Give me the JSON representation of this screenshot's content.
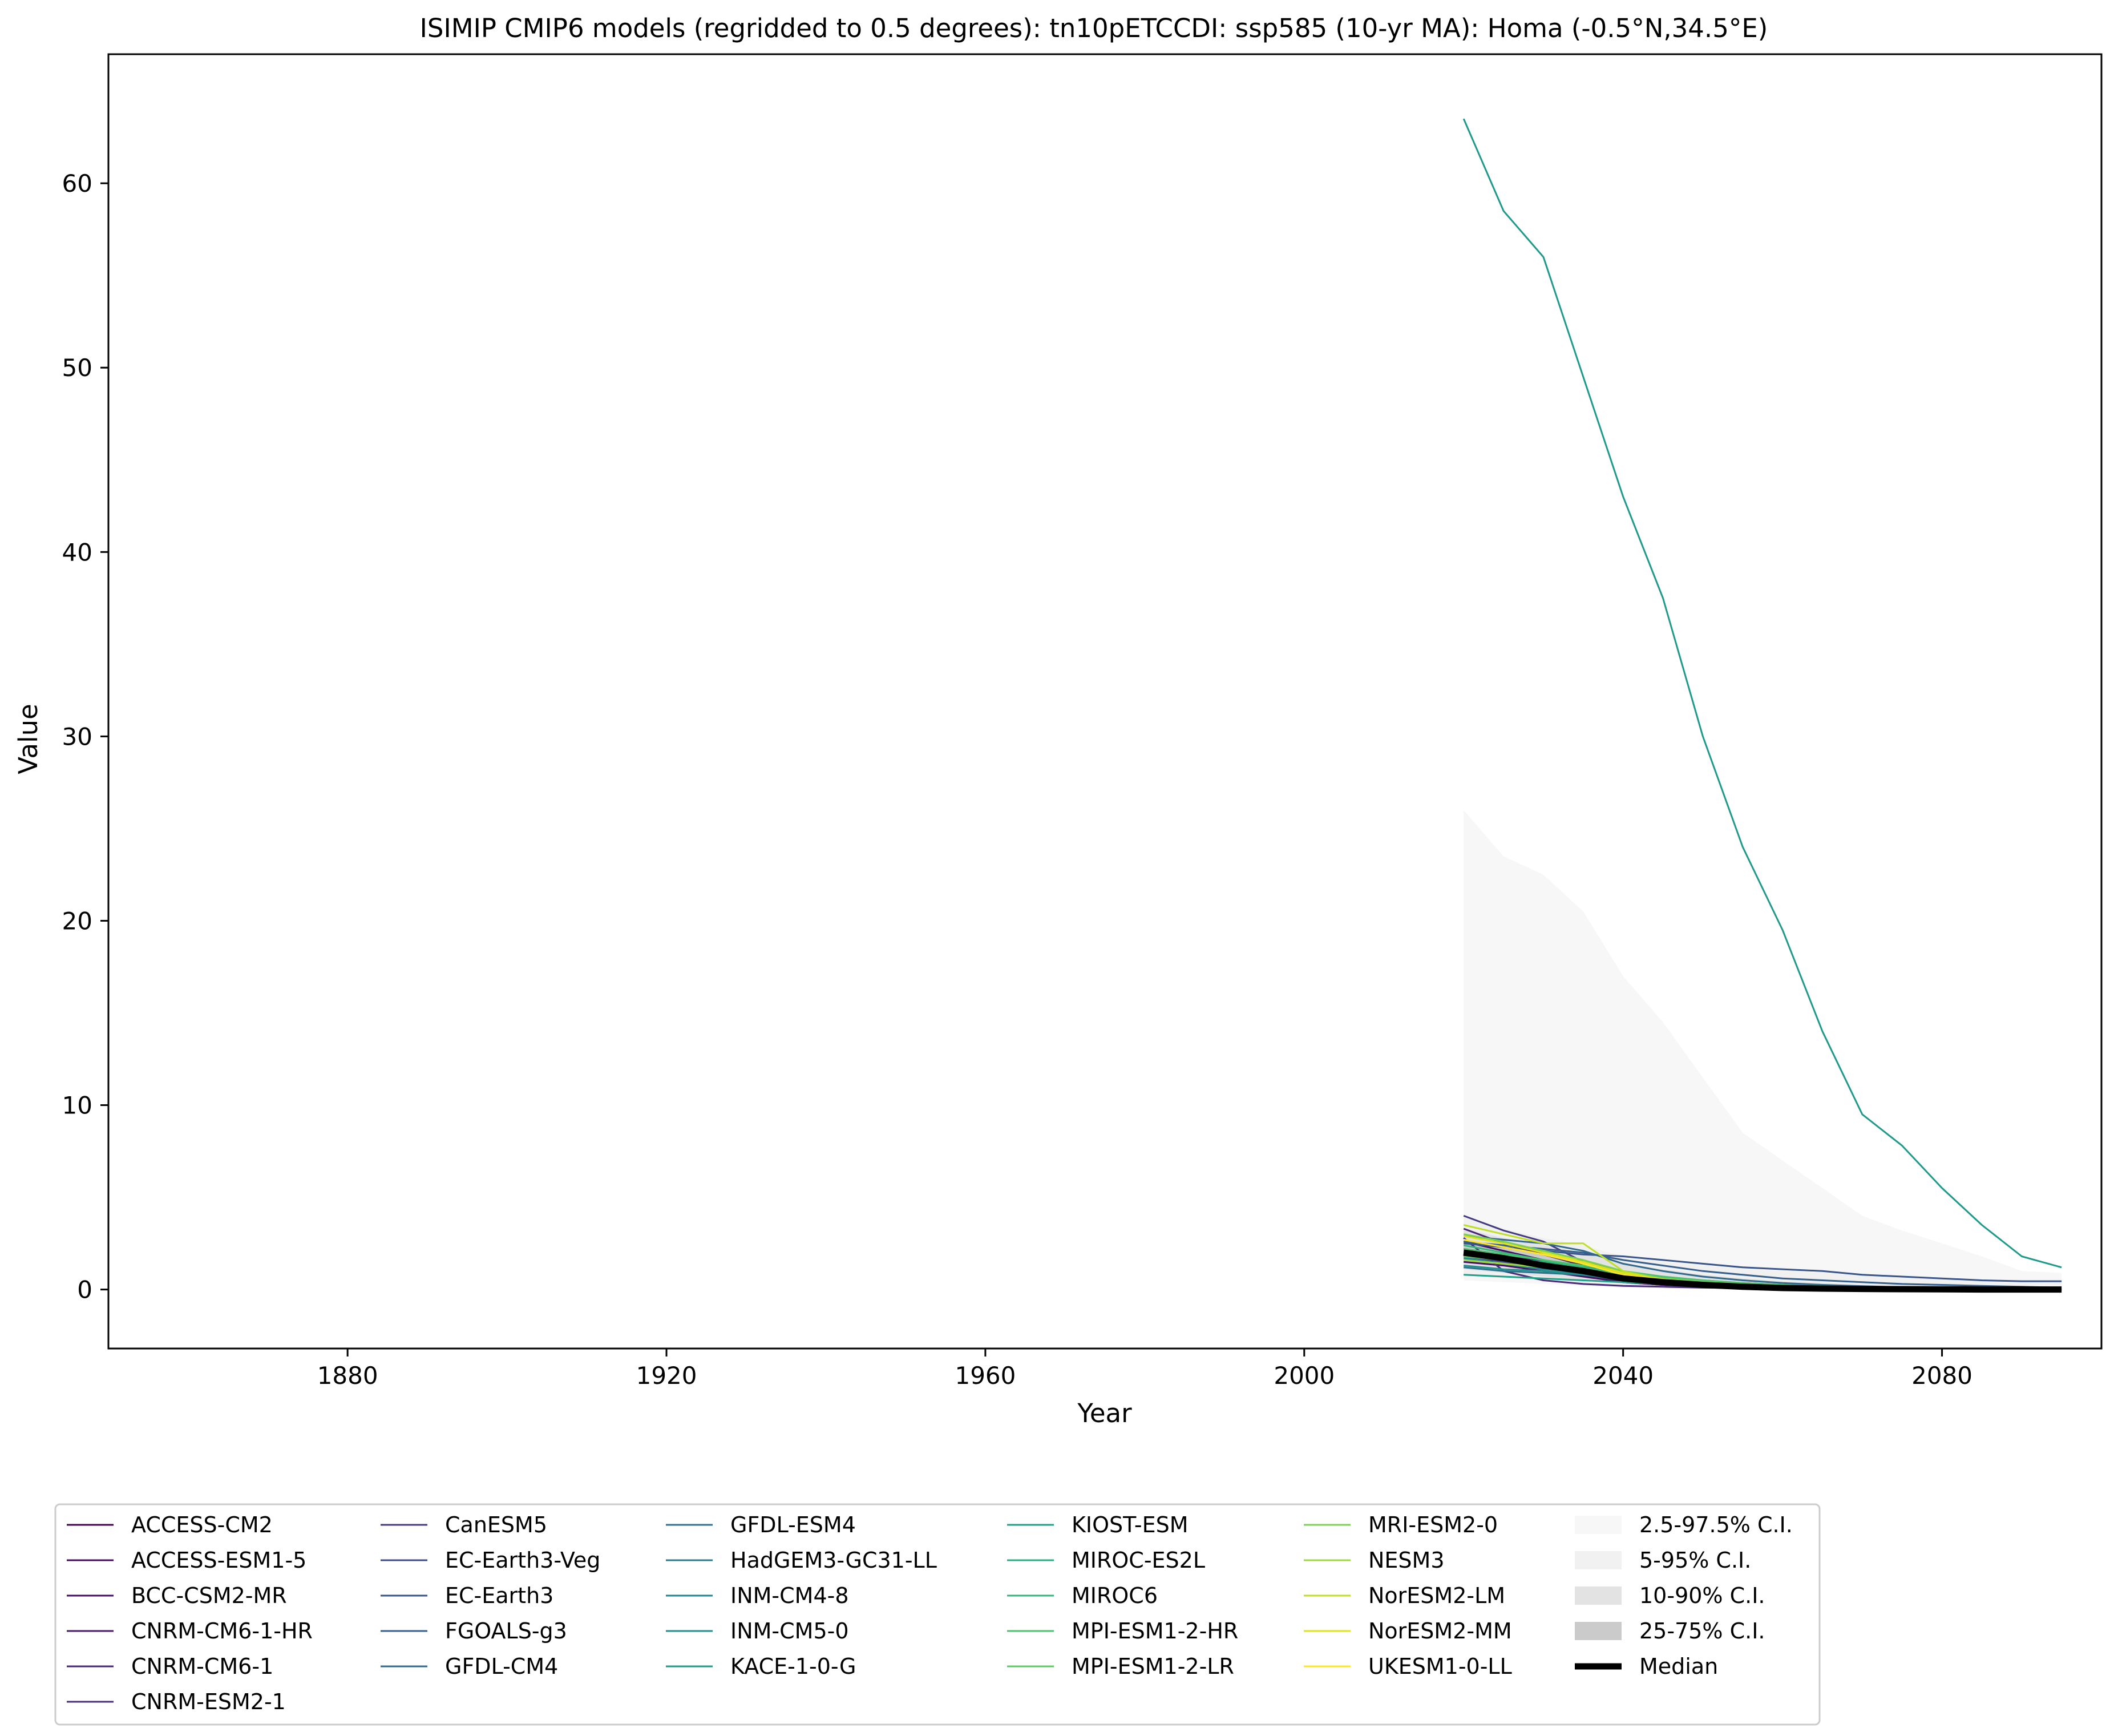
{
  "chart_data": {
    "type": "line",
    "title": "ISIMIP CMIP6 models (regridded to 0.5 degrees): tn10pETCCDI: ssp585 (10-yr MA): Homa (-0.5°N,34.5°E)",
    "xlabel": "Year",
    "ylabel": "Value",
    "xlim": [
      1850,
      2100
    ],
    "ylim": [
      -3.2,
      67
    ],
    "xticks": [
      1880,
      1920,
      1960,
      2000,
      2040,
      2080
    ],
    "yticks": [
      0,
      10,
      20,
      30,
      40,
      50,
      60
    ],
    "grid": false,
    "legend_position": "bottom",
    "x": [
      2020,
      2025,
      2030,
      2035,
      2040,
      2045,
      2050,
      2055,
      2060,
      2065,
      2070,
      2075,
      2080,
      2085,
      2090,
      2095
    ],
    "series": [
      {
        "name": "ACCESS-CM2",
        "color": "#440154",
        "values": [
          2.0,
          1.7,
          1.3,
          0.8,
          0.4,
          0.25,
          0.15,
          0.1,
          0.05,
          0.03,
          0.02,
          0.01,
          0.01,
          0.0,
          0.0,
          0.0
        ]
      },
      {
        "name": "ACCESS-ESM1-5",
        "color": "#46085c",
        "values": [
          2.6,
          2.1,
          1.6,
          1.1,
          0.6,
          0.35,
          0.2,
          0.12,
          0.07,
          0.04,
          0.02,
          0.01,
          0.01,
          0.0,
          0.0,
          0.0
        ]
      },
      {
        "name": "BCC-CSM2-MR",
        "color": "#471063",
        "values": [
          1.5,
          1.3,
          1.0,
          0.7,
          0.4,
          0.25,
          0.15,
          0.1,
          0.06,
          0.04,
          0.02,
          0.01,
          0.0,
          0.0,
          0.0,
          0.0
        ]
      },
      {
        "name": "CNRM-CM6-1-HR",
        "color": "#48186a",
        "values": [
          2.2,
          1.9,
          1.5,
          1.1,
          0.6,
          0.4,
          0.25,
          0.15,
          0.1,
          0.06,
          0.04,
          0.02,
          0.01,
          0.0,
          0.0,
          0.0
        ]
      },
      {
        "name": "CNRM-CM6-1",
        "color": "#482475",
        "values": [
          3.3,
          2.5,
          1.9,
          1.3,
          0.7,
          0.4,
          0.25,
          0.15,
          0.1,
          0.06,
          0.03,
          0.02,
          0.01,
          0.0,
          0.0,
          0.0
        ]
      },
      {
        "name": "CNRM-ESM2-1",
        "color": "#472d7b",
        "values": [
          2.8,
          1.0,
          0.5,
          0.3,
          0.2,
          0.15,
          0.1,
          0.08,
          0.05,
          0.03,
          0.02,
          0.01,
          0.0,
          0.0,
          0.0,
          0.0
        ]
      },
      {
        "name": "CanESM5",
        "color": "#443a83",
        "values": [
          4.0,
          3.2,
          2.6,
          1.5,
          1.0,
          0.6,
          0.4,
          0.3,
          0.2,
          0.15,
          0.1,
          0.05,
          0.03,
          0.02,
          0.01,
          0.0
        ]
      },
      {
        "name": "EC-Earth3-Veg",
        "color": "#3e4989",
        "values": [
          1.8,
          1.5,
          1.2,
          1.0,
          0.8,
          0.6,
          0.45,
          0.35,
          0.25,
          0.2,
          0.15,
          0.1,
          0.08,
          0.05,
          0.03,
          0.02
        ]
      },
      {
        "name": "EC-Earth3",
        "color": "#3a548c",
        "values": [
          2.5,
          2.3,
          2.1,
          1.9,
          1.8,
          1.6,
          1.4,
          1.2,
          1.1,
          1.0,
          0.8,
          0.7,
          0.6,
          0.5,
          0.45,
          0.45
        ]
      },
      {
        "name": "FGOALS-g3",
        "color": "#355f8d",
        "values": [
          2.6,
          2.4,
          2.2,
          2.0,
          1.6,
          1.3,
          1.0,
          0.8,
          0.6,
          0.5,
          0.4,
          0.3,
          0.25,
          0.2,
          0.15,
          0.1
        ]
      },
      {
        "name": "GFDL-CM4",
        "color": "#31688e",
        "values": [
          2.9,
          2.7,
          2.5,
          2.1,
          1.4,
          1.0,
          0.7,
          0.5,
          0.35,
          0.25,
          0.18,
          0.12,
          0.08,
          0.05,
          0.03,
          0.02
        ]
      },
      {
        "name": "GFDL-ESM4",
        "color": "#2c728e",
        "values": [
          1.2,
          1.0,
          0.9,
          0.8,
          0.6,
          0.5,
          0.4,
          0.3,
          0.2,
          0.15,
          0.1,
          0.08,
          0.05,
          0.03,
          0.02,
          0.01
        ]
      },
      {
        "name": "HadGEM3-GC31-LL",
        "color": "#287c8e",
        "values": [
          2.1,
          1.6,
          1.2,
          0.8,
          0.5,
          0.3,
          0.2,
          0.12,
          0.08,
          0.05,
          0.03,
          0.02,
          0.01,
          0.0,
          0.0,
          0.0
        ]
      },
      {
        "name": "INM-CM4-8",
        "color": "#24868e",
        "values": [
          1.7,
          1.4,
          1.1,
          0.9,
          0.7,
          0.5,
          0.4,
          0.3,
          0.2,
          0.15,
          0.1,
          0.08,
          0.05,
          0.03,
          0.02,
          0.01
        ]
      },
      {
        "name": "INM-CM5-0",
        "color": "#21908d",
        "values": [
          1.3,
          1.1,
          1.0,
          0.8,
          0.6,
          0.45,
          0.35,
          0.25,
          0.18,
          0.12,
          0.08,
          0.05,
          0.03,
          0.02,
          0.01,
          0.01
        ]
      },
      {
        "name": "KACE-1-0-G",
        "color": "#1f9a8a",
        "values": [
          63.5,
          58.5,
          56.0,
          49.5,
          43.0,
          37.5,
          30.0,
          24.0,
          19.5,
          14.0,
          9.5,
          7.8,
          5.5,
          3.5,
          1.8,
          1.2
        ]
      },
      {
        "name": "KIOST-ESM",
        "color": "#1fa088",
        "values": [
          0.8,
          0.7,
          0.6,
          0.5,
          0.4,
          0.3,
          0.2,
          0.15,
          0.1,
          0.08,
          0.05,
          0.03,
          0.02,
          0.01,
          0.0,
          0.0
        ]
      },
      {
        "name": "MIROC-ES2L",
        "color": "#27ad81",
        "values": [
          1.9,
          1.7,
          1.5,
          1.2,
          0.9,
          0.7,
          0.5,
          0.35,
          0.25,
          0.18,
          0.12,
          0.08,
          0.05,
          0.03,
          0.02,
          0.01
        ]
      },
      {
        "name": "MIROC6",
        "color": "#35b779",
        "values": [
          2.4,
          2.0,
          1.6,
          1.2,
          0.8,
          0.5,
          0.3,
          0.2,
          0.12,
          0.08,
          0.05,
          0.03,
          0.02,
          0.01,
          0.0,
          0.0
        ]
      },
      {
        "name": "MPI-ESM1-2-HR",
        "color": "#4ac16d",
        "values": [
          2.2,
          1.9,
          1.6,
          1.3,
          1.0,
          0.7,
          0.5,
          0.35,
          0.25,
          0.15,
          0.1,
          0.06,
          0.04,
          0.02,
          0.01,
          0.0
        ]
      },
      {
        "name": "MPI-ESM1-2-LR",
        "color": "#5ec962",
        "values": [
          1.8,
          1.6,
          1.4,
          1.1,
          0.8,
          0.6,
          0.45,
          0.3,
          0.2,
          0.15,
          0.1,
          0.06,
          0.04,
          0.02,
          0.01,
          0.0
        ]
      },
      {
        "name": "MRI-ESM2-0",
        "color": "#7ad151",
        "values": [
          3.0,
          2.6,
          2.1,
          1.6,
          1.0,
          0.6,
          0.4,
          0.25,
          0.15,
          0.1,
          0.06,
          0.04,
          0.02,
          0.01,
          0.0,
          0.0
        ]
      },
      {
        "name": "NESM3",
        "color": "#9bd93c",
        "values": [
          1.6,
          1.4,
          1.2,
          1.0,
          0.7,
          0.5,
          0.35,
          0.25,
          0.15,
          0.1,
          0.06,
          0.04,
          0.02,
          0.01,
          0.0,
          0.0
        ]
      },
      {
        "name": "NorESM2-LM",
        "color": "#bddf26",
        "values": [
          3.5,
          3.0,
          2.5,
          2.5,
          1.0,
          0.5,
          0.3,
          0.2,
          0.12,
          0.08,
          0.05,
          0.03,
          0.02,
          0.01,
          0.0,
          0.0
        ]
      },
      {
        "name": "NorESM2-MM",
        "color": "#dfe318",
        "values": [
          2.9,
          2.5,
          2.0,
          1.5,
          0.9,
          0.55,
          0.35,
          0.2,
          0.12,
          0.08,
          0.05,
          0.03,
          0.02,
          0.01,
          0.0,
          0.0
        ]
      },
      {
        "name": "UKESM1-0-LL",
        "color": "#fde725",
        "values": [
          2.7,
          2.3,
          1.9,
          1.4,
          0.8,
          0.5,
          0.3,
          0.2,
          0.12,
          0.08,
          0.05,
          0.03,
          0.02,
          0.01,
          0.0,
          0.0
        ]
      }
    ],
    "bands": [
      {
        "name": "2.5-97.5% C.I.",
        "color": "#f7f7f7",
        "lower": [
          0.5,
          0.4,
          0.3,
          0.2,
          0.1,
          0.05,
          0.03,
          0.02,
          0.01,
          0.0,
          0.0,
          0.0,
          0.0,
          0.0,
          0.0,
          0.0
        ],
        "upper": [
          26.0,
          23.5,
          22.5,
          20.5,
          17.0,
          14.5,
          11.5,
          8.5,
          7.0,
          5.5,
          4.0,
          3.2,
          2.5,
          1.8,
          1.0,
          0.9
        ]
      },
      {
        "name": "5-95% C.I.",
        "color": "#f1f1f1",
        "lower": [
          0.8,
          0.6,
          0.5,
          0.35,
          0.2,
          0.1,
          0.06,
          0.04,
          0.02,
          0.01,
          0.0,
          0.0,
          0.0,
          0.0,
          0.0,
          0.0
        ],
        "upper": [
          4.0,
          3.3,
          2.8,
          2.4,
          1.8,
          1.5,
          1.3,
          1.1,
          1.0,
          0.9,
          0.8,
          0.7,
          0.6,
          0.5,
          0.45,
          0.4
        ]
      },
      {
        "name": "10-90% C.I.",
        "color": "#e3e3e3",
        "lower": [
          1.1,
          0.9,
          0.7,
          0.5,
          0.3,
          0.18,
          0.1,
          0.06,
          0.04,
          0.02,
          0.01,
          0.0,
          0.0,
          0.0,
          0.0,
          0.0
        ],
        "upper": [
          3.3,
          2.8,
          2.4,
          2.0,
          1.4,
          1.1,
          0.8,
          0.6,
          0.45,
          0.35,
          0.25,
          0.18,
          0.12,
          0.08,
          0.05,
          0.04
        ]
      },
      {
        "name": "25-75% C.I.",
        "color": "#cbcbcb",
        "lower": [
          1.5,
          1.3,
          1.0,
          0.7,
          0.45,
          0.3,
          0.18,
          0.1,
          0.06,
          0.04,
          0.02,
          0.01,
          0.0,
          0.0,
          0.0,
          0.0
        ],
        "upper": [
          2.7,
          2.3,
          1.9,
          1.5,
          1.0,
          0.7,
          0.45,
          0.3,
          0.2,
          0.12,
          0.08,
          0.05,
          0.03,
          0.02,
          0.01,
          0.01
        ]
      }
    ],
    "median": {
      "name": "Median",
      "color": "#000000",
      "values": [
        2.0,
        1.7,
        1.3,
        1.0,
        0.6,
        0.4,
        0.25,
        0.15,
        0.08,
        0.05,
        0.03,
        0.02,
        0.01,
        0.0,
        0.0,
        0.0
      ]
    }
  }
}
